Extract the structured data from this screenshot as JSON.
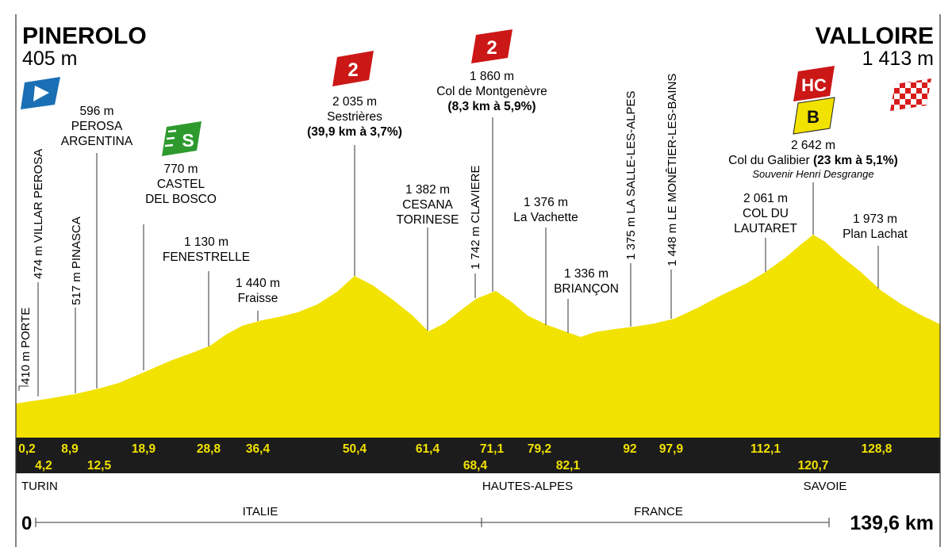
{
  "start": {
    "name": "PINEROLO",
    "altitude": "405 m"
  },
  "finish": {
    "name": "VALLOIRE",
    "altitude": "1 413 m"
  },
  "badges": {
    "sprint": "S",
    "sestrieres_cat": "2",
    "montgenevre_cat": "2",
    "galibier_cat": "HC",
    "galibier_bonus": "B"
  },
  "places": [
    {
      "id": "porte",
      "text": "410 m PORTE",
      "orient": "vertical"
    },
    {
      "id": "villar-perosa",
      "text": "474 m VILLAR PEROSA",
      "orient": "vertical"
    },
    {
      "id": "pinasca",
      "text": "517 m PINASCA",
      "orient": "vertical"
    },
    {
      "id": "perosa-argentina",
      "lines": [
        "596 m",
        "PEROSA",
        "ARGENTINA"
      ]
    },
    {
      "id": "castel-del-bosco",
      "lines": [
        "770 m",
        "CASTEL",
        "DEL BOSCO"
      ]
    },
    {
      "id": "fenestrelle",
      "lines": [
        "1 130 m",
        "FENESTRELLE"
      ]
    },
    {
      "id": "fraisse",
      "lines": [
        "1 440 m",
        "Fraisse"
      ]
    },
    {
      "id": "sestrieres",
      "lines": [
        "2 035 m",
        "Sestrières",
        "(39,9 km à 3,7%)"
      ]
    },
    {
      "id": "cesana-torinese",
      "lines": [
        "1 382 m",
        "CESANA",
        "TORINESE"
      ]
    },
    {
      "id": "claviere",
      "text": "1 742 m CLAVIERE",
      "orient": "vertical"
    },
    {
      "id": "montgenevre",
      "lines": [
        "1 860 m",
        "Col de Montgenèvre",
        "(8,3 km à 5,9%)"
      ]
    },
    {
      "id": "la-vachette",
      "lines": [
        "1 376 m",
        "La Vachette"
      ]
    },
    {
      "id": "briancon",
      "lines": [
        "1 336 m",
        "BRIANÇON"
      ]
    },
    {
      "id": "la-salle-les-alpes",
      "text": "1 375 m LA SALLE-LES-ALPES",
      "orient": "vertical"
    },
    {
      "id": "le-monetier-les-bains",
      "text": "1 448 m LE MONÊTIER-LES-BAINS",
      "orient": "vertical"
    },
    {
      "id": "col-du-lautaret",
      "lines": [
        "2 061 m",
        "COL DU",
        "LAUTARET"
      ]
    },
    {
      "id": "galibier",
      "lines": [
        "2 642 m",
        "Col du Galibier",
        "(23 km à 5,1%)",
        "Souvenir Henri Desgrange"
      ]
    },
    {
      "id": "plan-lachat",
      "lines": [
        "1 973 m",
        "Plan Lachat"
      ]
    }
  ],
  "km_markers": {
    "top": [
      "0,2",
      "8,9",
      "18,9",
      "28,8",
      "36,4",
      "50,4",
      "61,4",
      "71,1",
      "79,2",
      "92",
      "97,9",
      "112,1",
      "128,8"
    ],
    "bottom": [
      "4,2",
      "12,5",
      "68,4",
      "82,1",
      "120,7"
    ]
  },
  "regions": [
    "TURIN",
    "HAUTES-ALPES",
    "SAVOIE"
  ],
  "countries": [
    "ITALIE",
    "FRANCE"
  ],
  "distance": {
    "start": "0",
    "total": "139,6 km"
  },
  "colors": {
    "profile_fill": "#f2e200",
    "band": "#1c1c1c",
    "km_text": "#f2e200",
    "category_red": "#cc1717",
    "sprint_green": "#2e9a2e",
    "start_blue": "#1a6fb5",
    "bonus_yellow": "#f2e200"
  },
  "icons": [
    "start-flag-icon",
    "finish-flag-icon",
    "sprint-badge-icon",
    "climb-category-icon",
    "bonus-badge-icon"
  ]
}
